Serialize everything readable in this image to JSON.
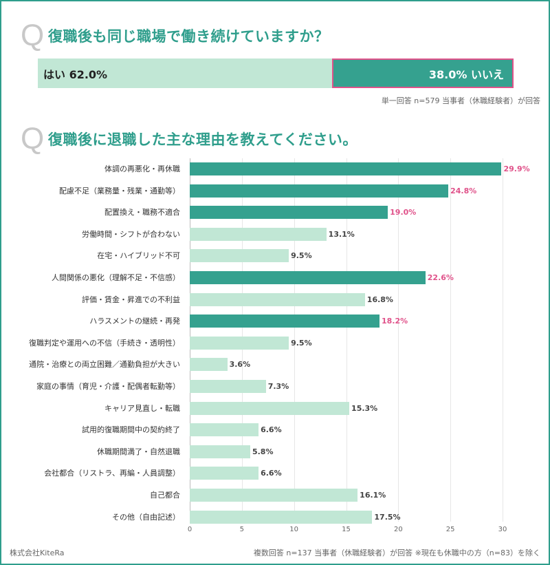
{
  "q1": {
    "mark": "Q",
    "title": "復職後も同じ職場で働き続けていますか？",
    "yes_label": "はい 62.0%",
    "no_label": "38.0% いいえ",
    "yes": 62.0,
    "no": 38.0,
    "note": "単一回答 n=579 当事者（休職経験者）が回答"
  },
  "q2": {
    "mark": "Q",
    "title": "復職後に退職した主な理由を教えてください。",
    "note": "複数回答 n=137 当事者（休職経験者）が回答 ※現在も休職中の方（n=83）を除く"
  },
  "footer": {
    "company": "株式会社KiteRa"
  },
  "colors": {
    "accent": "#35a18f",
    "light": "#c1e7d5",
    "highlight_label": "#e0528a",
    "border": "#2f9e8c"
  },
  "chart_data": {
    "type": "bar",
    "orientation": "horizontal",
    "xlim": [
      0,
      30
    ],
    "ticks": [
      0,
      5,
      10,
      15,
      20,
      25,
      30
    ],
    "grid": true,
    "categories": [
      "体調の再悪化・再休職",
      "配慮不足（業務量・残業・通勤等）",
      "配置換え・職務不適合",
      "労働時間・シフトが合わない",
      "在宅・ハイブリッド不可",
      "人間関係の悪化（理解不足・不信感）",
      "評価・賃金・昇進での不利益",
      "ハラスメントの継続・再発",
      "復職判定や運用への不信（手続き・透明性）",
      "通院・治療との両立困難／通勤負担が大きい",
      "家庭の事情（育児・介護・配偶者転勤等）",
      "キャリア見直し・転職",
      "試用的復職期間中の契約終了",
      "休職期間満了・自然退職",
      "会社都合（リストラ、再編・人員調整）",
      "自己都合",
      "その他（自由記述）"
    ],
    "values": [
      29.9,
      24.8,
      19.0,
      13.1,
      9.5,
      22.6,
      16.8,
      18.2,
      9.5,
      3.6,
      7.3,
      15.3,
      6.6,
      5.8,
      6.6,
      16.1,
      17.5
    ],
    "labels": [
      "29.9%",
      "24.8%",
      "19.0%",
      "13.1%",
      "9.5%",
      "22.6%",
      "16.8%",
      "18.2%",
      "9.5%",
      "3.6%",
      "7.3%",
      "15.3%",
      "6.6%",
      "5.8%",
      "6.6%",
      "16.1%",
      "17.5%"
    ],
    "highlighted": [
      true,
      true,
      true,
      false,
      false,
      true,
      false,
      true,
      false,
      false,
      false,
      false,
      false,
      false,
      false,
      false,
      false
    ]
  }
}
